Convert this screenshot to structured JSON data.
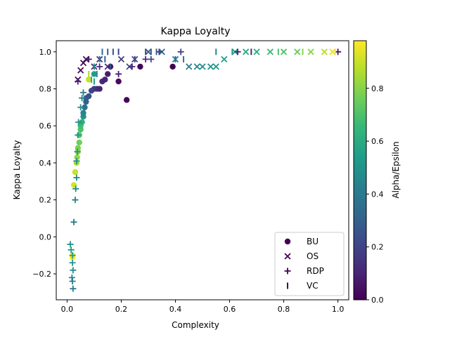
{
  "chart_data": {
    "type": "scatter",
    "title": "Kappa Loyalty",
    "xlabel": "Complexity",
    "ylabel": "Kappa Loyalty",
    "xlim": [
      -0.04,
      1.04
    ],
    "ylim": [
      -0.34,
      1.06
    ],
    "xticks": [
      0.0,
      0.2,
      0.4,
      0.6,
      0.8,
      1.0
    ],
    "xtick_labels": [
      "0.0",
      "0.2",
      "0.4",
      "0.6",
      "0.8",
      "1.0"
    ],
    "yticks": [
      -0.2,
      0.0,
      0.2,
      0.4,
      0.6,
      0.8,
      1.0
    ],
    "ytick_labels": [
      "−0.2",
      "0.0",
      "0.2",
      "0.4",
      "0.6",
      "0.8",
      "1.0"
    ],
    "grid": false,
    "legend_position": "lower right",
    "colorbar": {
      "label": "Alpha/Epsilon",
      "colormap": "viridis",
      "range": [
        0.0,
        0.98
      ],
      "ticks": [
        0.0,
        0.2,
        0.4,
        0.6,
        0.8
      ],
      "tick_labels": [
        "0.0",
        "0.2",
        "0.4",
        "0.6",
        "0.8"
      ],
      "colors": [
        "#440154",
        "#482878",
        "#3e4989",
        "#31688e",
        "#26828e",
        "#1f9e89",
        "#35b779",
        "#6ece58",
        "#b5de2b",
        "#fde725"
      ]
    },
    "series": [
      {
        "name": "BU",
        "marker": "circle",
        "points": [
          [
            0.02,
            -0.11,
            0.98
          ],
          [
            0.02,
            -0.1,
            0.95
          ],
          [
            0.025,
            0.28,
            0.92
          ],
          [
            0.03,
            0.35,
            0.9
          ],
          [
            0.035,
            0.4,
            0.85
          ],
          [
            0.037,
            0.43,
            0.82
          ],
          [
            0.04,
            0.46,
            0.8
          ],
          [
            0.04,
            0.48,
            0.78
          ],
          [
            0.045,
            0.51,
            0.76
          ],
          [
            0.045,
            0.55,
            0.72
          ],
          [
            0.05,
            0.58,
            0.7
          ],
          [
            0.05,
            0.6,
            0.68
          ],
          [
            0.055,
            0.62,
            0.62
          ],
          [
            0.06,
            0.65,
            0.5
          ],
          [
            0.06,
            0.67,
            0.45
          ],
          [
            0.065,
            0.7,
            0.35
          ],
          [
            0.07,
            0.73,
            0.3
          ],
          [
            0.07,
            0.75,
            0.28
          ],
          [
            0.08,
            0.76,
            0.25
          ],
          [
            0.09,
            0.79,
            0.2
          ],
          [
            0.1,
            0.8,
            0.18
          ],
          [
            0.11,
            0.8,
            0.15
          ],
          [
            0.12,
            0.8,
            0.1
          ],
          [
            0.13,
            0.84,
            0.12
          ],
          [
            0.14,
            0.85,
            0.1
          ],
          [
            0.15,
            0.88,
            0.08
          ],
          [
            0.16,
            0.92,
            0.05
          ],
          [
            0.19,
            0.84,
            0.03
          ],
          [
            0.22,
            0.74,
            0.02
          ],
          [
            0.1,
            0.88,
            0.55
          ],
          [
            0.08,
            0.85,
            0.9
          ],
          [
            0.27,
            0.92,
            0.01
          ],
          [
            0.39,
            0.92,
            0.0
          ]
        ]
      },
      {
        "name": "OS",
        "marker": "x",
        "points": [
          [
            0.04,
            0.85,
            0.01
          ],
          [
            0.05,
            0.9,
            0.02
          ],
          [
            0.06,
            0.94,
            0.03
          ],
          [
            0.07,
            0.96,
            0.05
          ],
          [
            0.1,
            0.92,
            0.1
          ],
          [
            0.12,
            0.96,
            0.15
          ],
          [
            0.15,
            0.92,
            0.12
          ],
          [
            0.2,
            0.96,
            0.18
          ],
          [
            0.25,
            0.96,
            0.2
          ],
          [
            0.3,
            1.0,
            0.3
          ],
          [
            0.35,
            1.0,
            0.35
          ],
          [
            0.4,
            0.96,
            0.4
          ],
          [
            0.45,
            0.92,
            0.42
          ],
          [
            0.48,
            0.92,
            0.45
          ],
          [
            0.5,
            0.92,
            0.48
          ],
          [
            0.53,
            0.92,
            0.5
          ],
          [
            0.55,
            0.92,
            0.52
          ],
          [
            0.58,
            0.96,
            0.55
          ],
          [
            0.62,
            1.0,
            0.58
          ],
          [
            0.66,
            1.0,
            0.6
          ],
          [
            0.7,
            1.0,
            0.62
          ],
          [
            0.75,
            1.0,
            0.66
          ],
          [
            0.8,
            1.0,
            0.7
          ],
          [
            0.85,
            1.0,
            0.75
          ],
          [
            0.9,
            1.0,
            0.8
          ],
          [
            0.95,
            1.0,
            0.88
          ],
          [
            0.98,
            1.0,
            0.95
          ],
          [
            0.23,
            0.92,
            0.22
          ]
        ]
      },
      {
        "name": "RDP",
        "marker": "plus",
        "points": [
          [
            0.012,
            -0.04,
            0.5
          ],
          [
            0.015,
            -0.07,
            0.52
          ],
          [
            0.02,
            -0.1,
            0.55
          ],
          [
            0.02,
            -0.14,
            0.5
          ],
          [
            0.022,
            -0.18,
            0.48
          ],
          [
            0.018,
            -0.22,
            0.45
          ],
          [
            0.02,
            -0.24,
            0.42
          ],
          [
            0.022,
            -0.28,
            0.4
          ],
          [
            0.025,
            0.08,
            0.4
          ],
          [
            0.03,
            0.2,
            0.42
          ],
          [
            0.032,
            0.26,
            0.45
          ],
          [
            0.035,
            0.32,
            0.48
          ],
          [
            0.035,
            0.41,
            0.5
          ],
          [
            0.038,
            0.46,
            0.52
          ],
          [
            0.04,
            0.55,
            0.55
          ],
          [
            0.042,
            0.62,
            0.5
          ],
          [
            0.05,
            0.7,
            0.48
          ],
          [
            0.055,
            0.75,
            0.45
          ],
          [
            0.06,
            0.78,
            0.42
          ],
          [
            0.04,
            0.84,
            0.1
          ],
          [
            0.08,
            0.96,
            0.05
          ],
          [
            0.12,
            0.92,
            0.12
          ],
          [
            0.19,
            0.88,
            0.08
          ],
          [
            0.24,
            0.92,
            0.1
          ],
          [
            0.29,
            0.96,
            0.12
          ],
          [
            0.34,
            1.0,
            0.15
          ],
          [
            0.42,
            1.0,
            0.2
          ],
          [
            0.63,
            1.0,
            0.1
          ],
          [
            1.0,
            1.0,
            0.05
          ],
          [
            0.31,
            0.96,
            0.2
          ]
        ]
      },
      {
        "name": "VC",
        "marker": "vline",
        "points": [
          [
            0.08,
            0.88,
            0.85
          ],
          [
            0.09,
            0.85,
            0.6
          ],
          [
            0.1,
            0.92,
            0.5
          ],
          [
            0.11,
            0.88,
            0.45
          ],
          [
            0.12,
            0.96,
            0.4
          ],
          [
            0.13,
            1.0,
            0.35
          ],
          [
            0.14,
            0.96,
            0.3
          ],
          [
            0.15,
            1.0,
            0.28
          ],
          [
            0.17,
            1.0,
            0.25
          ],
          [
            0.19,
            1.0,
            0.2
          ],
          [
            0.16,
            0.92,
            0.22
          ],
          [
            0.25,
            0.96,
            0.2
          ],
          [
            0.31,
            1.0,
            0.25
          ],
          [
            0.33,
            1.0,
            0.3
          ],
          [
            0.4,
            0.96,
            0.35
          ],
          [
            0.43,
            0.96,
            0.4
          ],
          [
            0.55,
            1.0,
            0.45
          ],
          [
            0.61,
            1.0,
            0.5
          ],
          [
            0.68,
            1.0,
            0.1
          ],
          [
            0.78,
            1.0,
            0.7
          ],
          [
            0.87,
            1.0,
            0.8
          ],
          [
            0.99,
            1.0,
            0.97
          ],
          [
            0.29,
            1.0,
            0.22
          ],
          [
            0.1,
            0.84,
            0.55
          ]
        ]
      }
    ]
  }
}
